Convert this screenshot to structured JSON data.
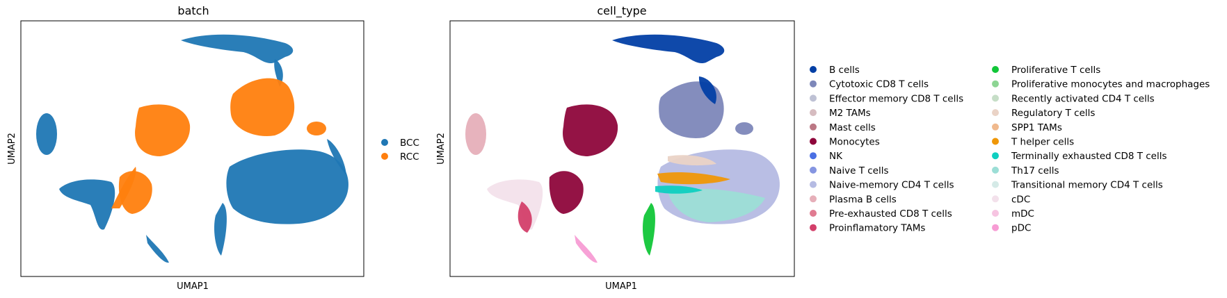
{
  "chart_data": [
    {
      "type": "scatter",
      "title": "batch",
      "xlabel": "UMAP1",
      "ylabel": "UMAP2",
      "legend_position": "right",
      "series": [
        {
          "name": "BCC",
          "color": "#1f77b4"
        },
        {
          "name": "RCC",
          "color": "#ff7f0e"
        }
      ]
    },
    {
      "type": "scatter",
      "title": "cell_type",
      "xlabel": "UMAP1",
      "ylabel": "UMAP2",
      "legend_position": "right",
      "series": [
        {
          "name": "B cells",
          "color": "#023fa5"
        },
        {
          "name": "Cytotoxic CD8 T cells",
          "color": "#7d87b9"
        },
        {
          "name": "Effector memory CD8 T cells",
          "color": "#bec1d4"
        },
        {
          "name": "M2 TAMs",
          "color": "#d6bcc0"
        },
        {
          "name": "Mast cells",
          "color": "#bb7784"
        },
        {
          "name": "Monocytes",
          "color": "#8e063b"
        },
        {
          "name": "NK",
          "color": "#4a6fe3"
        },
        {
          "name": "Naive T cells",
          "color": "#8595e1"
        },
        {
          "name": "Naive-memory CD4 T cells",
          "color": "#b5bbe3"
        },
        {
          "name": "Plasma B cells",
          "color": "#e6afb9"
        },
        {
          "name": "Pre-exhausted CD8 T cells",
          "color": "#e07b91"
        },
        {
          "name": "Proinflamatory TAMs",
          "color": "#d33f6a"
        },
        {
          "name": "Proliferative T cells",
          "color": "#11c638"
        },
        {
          "name": "Proliferative monocytes and macrophages",
          "color": "#8dd593"
        },
        {
          "name": "Recently activated CD4 T cells",
          "color": "#c6dec7"
        },
        {
          "name": "Regulatory T cells",
          "color": "#ead3c6"
        },
        {
          "name": "SPP1 TAMs",
          "color": "#f0b98d"
        },
        {
          "name": "T helper cells",
          "color": "#ef9708"
        },
        {
          "name": "Terminally exhausted CD8 T cells",
          "color": "#0fcfc0"
        },
        {
          "name": "Th17 cells",
          "color": "#9cded6"
        },
        {
          "name": "Transitional memory CD4 T cells",
          "color": "#d5eae7"
        },
        {
          "name": "cDC",
          "color": "#f3e1eb"
        },
        {
          "name": "mDC",
          "color": "#f6c4e1"
        },
        {
          "name": "pDC",
          "color": "#f79cd4"
        }
      ]
    }
  ]
}
